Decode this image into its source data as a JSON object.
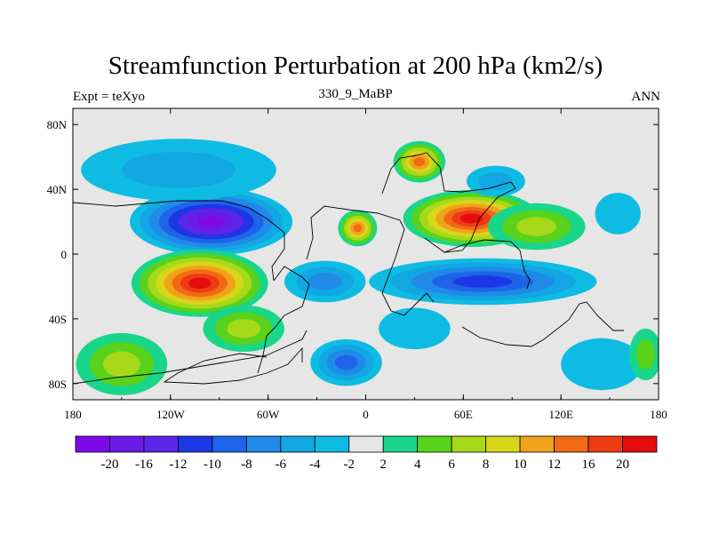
{
  "title": "Streamfunction Perturbation at 200 hPa (km2/s)",
  "left_string": "Expt = teXyo",
  "center_string": "330_9_MaBP",
  "right_string": "ANN",
  "chart_data": {
    "type": "heatmap",
    "projection": "cylindrical-equidistant",
    "variable": "Streamfunction Perturbation at 200 hPa",
    "units": "km2/s",
    "lon_range": [
      -180,
      180
    ],
    "lat_range": [
      -90,
      90
    ],
    "x_ticks": [
      {
        "lon": -180,
        "label": "180"
      },
      {
        "lon": -120,
        "label": "120W"
      },
      {
        "lon": -60,
        "label": "60W"
      },
      {
        "lon": 0,
        "label": "0"
      },
      {
        "lon": 60,
        "label": "60E"
      },
      {
        "lon": 120,
        "label": "120E"
      },
      {
        "lon": 180,
        "label": "180"
      }
    ],
    "y_ticks": [
      {
        "lat": 80,
        "label": "80N"
      },
      {
        "lat": 40,
        "label": "40N"
      },
      {
        "lat": 0,
        "label": "0"
      },
      {
        "lat": -40,
        "label": "40S"
      },
      {
        "lat": -80,
        "label": "80S"
      }
    ],
    "contour_levels": [
      -20,
      -16,
      -12,
      -10,
      -8,
      -6,
      -4,
      -2,
      2,
      4,
      6,
      8,
      10,
      12,
      16,
      20
    ],
    "colors": [
      "#7d0ae6",
      "#6a1be8",
      "#5a26ea",
      "#1d36e6",
      "#1e63e8",
      "#1f8ae8",
      "#12a6e2",
      "#0ebce3",
      "#e6e6e6",
      "#19d68a",
      "#58d21a",
      "#a6d91a",
      "#d8d61a",
      "#f0a21a",
      "#f06a16",
      "#ee3b14",
      "#e30d0d"
    ],
    "centers": [
      {
        "lon": -95,
        "lat": 20,
        "value": -22,
        "rx": 50,
        "ry": 13
      },
      {
        "lon": -115,
        "lat": 52,
        "value": -6,
        "rx": 60,
        "ry": 12
      },
      {
        "lon": -102,
        "lat": -18,
        "value": 24,
        "rx": 42,
        "ry": 13
      },
      {
        "lon": -150,
        "lat": -68,
        "value": 7,
        "rx": 28,
        "ry": 12
      },
      {
        "lon": -75,
        "lat": -46,
        "value": 6,
        "rx": 25,
        "ry": 9
      },
      {
        "lon": 33,
        "lat": 57,
        "value": 14,
        "rx": 16,
        "ry": 8
      },
      {
        "lon": 65,
        "lat": 22,
        "value": 21,
        "rx": 42,
        "ry": 11
      },
      {
        "lon": -5,
        "lat": 16,
        "value": 12,
        "rx": 12,
        "ry": 7
      },
      {
        "lon": 105,
        "lat": 17,
        "value": 6,
        "rx": 30,
        "ry": 9
      },
      {
        "lon": 72,
        "lat": -17,
        "value": -11,
        "rx": 70,
        "ry": 9
      },
      {
        "lon": -25,
        "lat": -17,
        "value": -8,
        "rx": 25,
        "ry": 8
      },
      {
        "lon": -12,
        "lat": -67,
        "value": -9,
        "rx": 22,
        "ry": 9
      },
      {
        "lon": 30,
        "lat": -46,
        "value": -4,
        "rx": 22,
        "ry": 8
      },
      {
        "lon": 80,
        "lat": 45,
        "value": -5,
        "rx": 18,
        "ry": 6
      },
      {
        "lon": 155,
        "lat": 25,
        "value": -3,
        "rx": 14,
        "ry": 8
      },
      {
        "lon": 145,
        "lat": -68,
        "value": -4,
        "rx": 25,
        "ry": 10
      },
      {
        "lon": 172,
        "lat": -62,
        "value": 4,
        "rx": 10,
        "ry": 10
      }
    ],
    "colorbar_labels": [
      "-20",
      "-16",
      "-12",
      "-10",
      "-8",
      "-6",
      "-4",
      "-2",
      "2",
      "4",
      "6",
      "8",
      "10",
      "12",
      "16",
      "20"
    ]
  }
}
